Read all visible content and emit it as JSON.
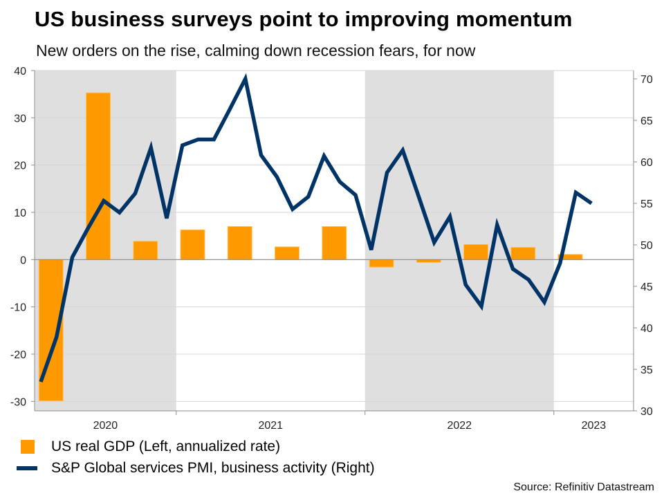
{
  "chart_data": {
    "type": "bar+line",
    "title": "US business surveys point to improving momentum",
    "subtitle": "New orders on the rise, calming down recession fears, for now",
    "x_year_labels": [
      "2020",
      "2021",
      "2022",
      "2023"
    ],
    "shaded_years": [
      "2020",
      "2022"
    ],
    "left_axis": {
      "ylim": [
        -32,
        40
      ],
      "ticks": [
        40,
        30,
        20,
        10,
        0,
        -10,
        -20,
        -30
      ],
      "label": "US real GDP"
    },
    "right_axis": {
      "ylim": [
        30,
        71
      ],
      "ticks": [
        70,
        65,
        60,
        55,
        50,
        45,
        40,
        35,
        30
      ],
      "label": "S&P Global services PMI"
    },
    "grid": true,
    "series": [
      {
        "name": "US real GDP (Left, annualized rate)",
        "type": "bar",
        "axis": "left",
        "color": "#FF9900",
        "x": [
          "Q2 2020",
          "Q3 2020",
          "Q4 2020",
          "Q1 2021",
          "Q2 2021",
          "Q3 2021",
          "Q4 2021",
          "Q1 2022",
          "Q2 2022",
          "Q3 2022",
          "Q4 2022",
          "Q1 2023"
        ],
        "values": [
          -29.9,
          35.3,
          3.9,
          6.3,
          7.0,
          2.7,
          7.0,
          -1.6,
          -0.6,
          3.2,
          2.6,
          1.1
        ]
      },
      {
        "name": "S&P Global services PMI, business activity (Right)",
        "type": "line",
        "axis": "right",
        "color": "#003366",
        "x": [
          "Apr 2020",
          "May 2020",
          "Jun 2020",
          "Jul 2020",
          "Aug 2020",
          "Sep 2020",
          "Oct 2020",
          "Nov 2020",
          "Dec 2020",
          "Jan 2021",
          "Feb 2021",
          "Mar 2021",
          "Apr 2021",
          "May 2021",
          "Jun 2021",
          "Jul 2021",
          "Aug 2021",
          "Sep 2021",
          "Oct 2021",
          "Nov 2021",
          "Dec 2021",
          "Jan 2022",
          "Feb 2022",
          "Mar 2022",
          "Apr 2022",
          "May 2022",
          "Jun 2022",
          "Jul 2022",
          "Aug 2022",
          "Sep 2022",
          "Oct 2022",
          "Nov 2022",
          "Dec 2022",
          "Jan 2023",
          "Feb 2023",
          "Mar 2023"
        ],
        "values": [
          33.5,
          38.9,
          48.5,
          52.0,
          55.3,
          53.9,
          56.2,
          61.7,
          53.2,
          62.0,
          62.7,
          62.7,
          66.3,
          70.0,
          60.8,
          58.2,
          54.3,
          55.8,
          60.7,
          57.6,
          56.0,
          49.4,
          58.7,
          61.4,
          55.9,
          50.3,
          53.4,
          45.2,
          42.6,
          52.4,
          47.1,
          45.8,
          43.1,
          47.8,
          56.3,
          55.0
        ]
      }
    ],
    "legend_position": "bottom-left",
    "source": "Source: Refinitiv Datastream"
  },
  "header": {
    "title": "US business surveys point to improving momentum",
    "subtitle": "New orders on the rise, calming down recession fears, for now"
  },
  "legend": {
    "gdp_label": "US real GDP (Left, annualized rate)",
    "pmi_label": "S&P Global services PMI, business activity (Right)"
  },
  "footer": {
    "source": "Source: Refinitiv Datastream"
  }
}
